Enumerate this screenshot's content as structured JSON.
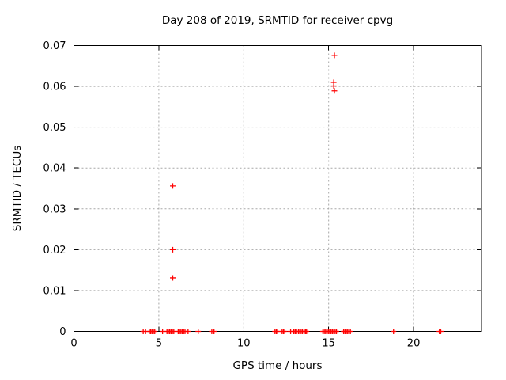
{
  "title": "Day 208 of 2019, SRMTID for receiver cpvg",
  "colors": {
    "marker": "#ff0000",
    "grid": "#a8a8a8",
    "axis": "#000000",
    "background": "#ffffff"
  },
  "chart_data": {
    "type": "scatter",
    "title": "Day 208 of 2019, SRMTID for receiver cpvg",
    "xlabel": "GPS time / hours",
    "ylabel": "SRMTID / TECUs",
    "xlim": [
      0,
      24
    ],
    "ylim": [
      0,
      0.07
    ],
    "xticks": [
      0,
      5,
      10,
      15,
      20
    ],
    "yticks": [
      0,
      0.01,
      0.02,
      0.03,
      0.04,
      0.05,
      0.06,
      0.07
    ],
    "grid": true,
    "legend_position": "none",
    "marker": "plus",
    "marker_color": "#ff0000",
    "series": [
      {
        "name": "SRMTID",
        "points": [
          [
            5.82,
            0.0356
          ],
          [
            5.82,
            0.02
          ],
          [
            5.82,
            0.0131
          ],
          [
            15.34,
            0.0676
          ],
          [
            15.3,
            0.061
          ],
          [
            15.3,
            0.0601
          ],
          [
            15.34,
            0.0589
          ],
          [
            4.08,
            0
          ],
          [
            4.22,
            0
          ],
          [
            4.44,
            0
          ],
          [
            4.52,
            0
          ],
          [
            4.6,
            0
          ],
          [
            4.68,
            0
          ],
          [
            4.76,
            0
          ],
          [
            5.22,
            0
          ],
          [
            5.48,
            0
          ],
          [
            5.56,
            0
          ],
          [
            5.64,
            0
          ],
          [
            5.72,
            0
          ],
          [
            5.8,
            0
          ],
          [
            5.88,
            0
          ],
          [
            6.14,
            0
          ],
          [
            6.22,
            0
          ],
          [
            6.3,
            0
          ],
          [
            6.38,
            0
          ],
          [
            6.46,
            0
          ],
          [
            6.54,
            0
          ],
          [
            6.72,
            0
          ],
          [
            7.32,
            0
          ],
          [
            8.12,
            0
          ],
          [
            8.25,
            0
          ],
          [
            11.84,
            0
          ],
          [
            11.92,
            0
          ],
          [
            12.0,
            0
          ],
          [
            12.26,
            0
          ],
          [
            12.34,
            0
          ],
          [
            12.42,
            0
          ],
          [
            12.76,
            0
          ],
          [
            12.95,
            0
          ],
          [
            13.03,
            0
          ],
          [
            13.11,
            0
          ],
          [
            13.22,
            0
          ],
          [
            13.3,
            0
          ],
          [
            13.38,
            0
          ],
          [
            13.46,
            0
          ],
          [
            13.56,
            0
          ],
          [
            13.64,
            0
          ],
          [
            13.7,
            0
          ],
          [
            14.66,
            0
          ],
          [
            14.74,
            0
          ],
          [
            14.82,
            0
          ],
          [
            14.9,
            0
          ],
          [
            14.98,
            0
          ],
          [
            15.06,
            0
          ],
          [
            15.14,
            0
          ],
          [
            15.22,
            0
          ],
          [
            15.3,
            0
          ],
          [
            15.38,
            0
          ],
          [
            15.46,
            0
          ],
          [
            15.88,
            0
          ],
          [
            15.96,
            0
          ],
          [
            16.04,
            0
          ],
          [
            16.12,
            0
          ],
          [
            16.2,
            0
          ],
          [
            16.28,
            0
          ],
          [
            18.82,
            0
          ],
          [
            21.52,
            0
          ],
          [
            21.6,
            0
          ]
        ]
      }
    ]
  }
}
